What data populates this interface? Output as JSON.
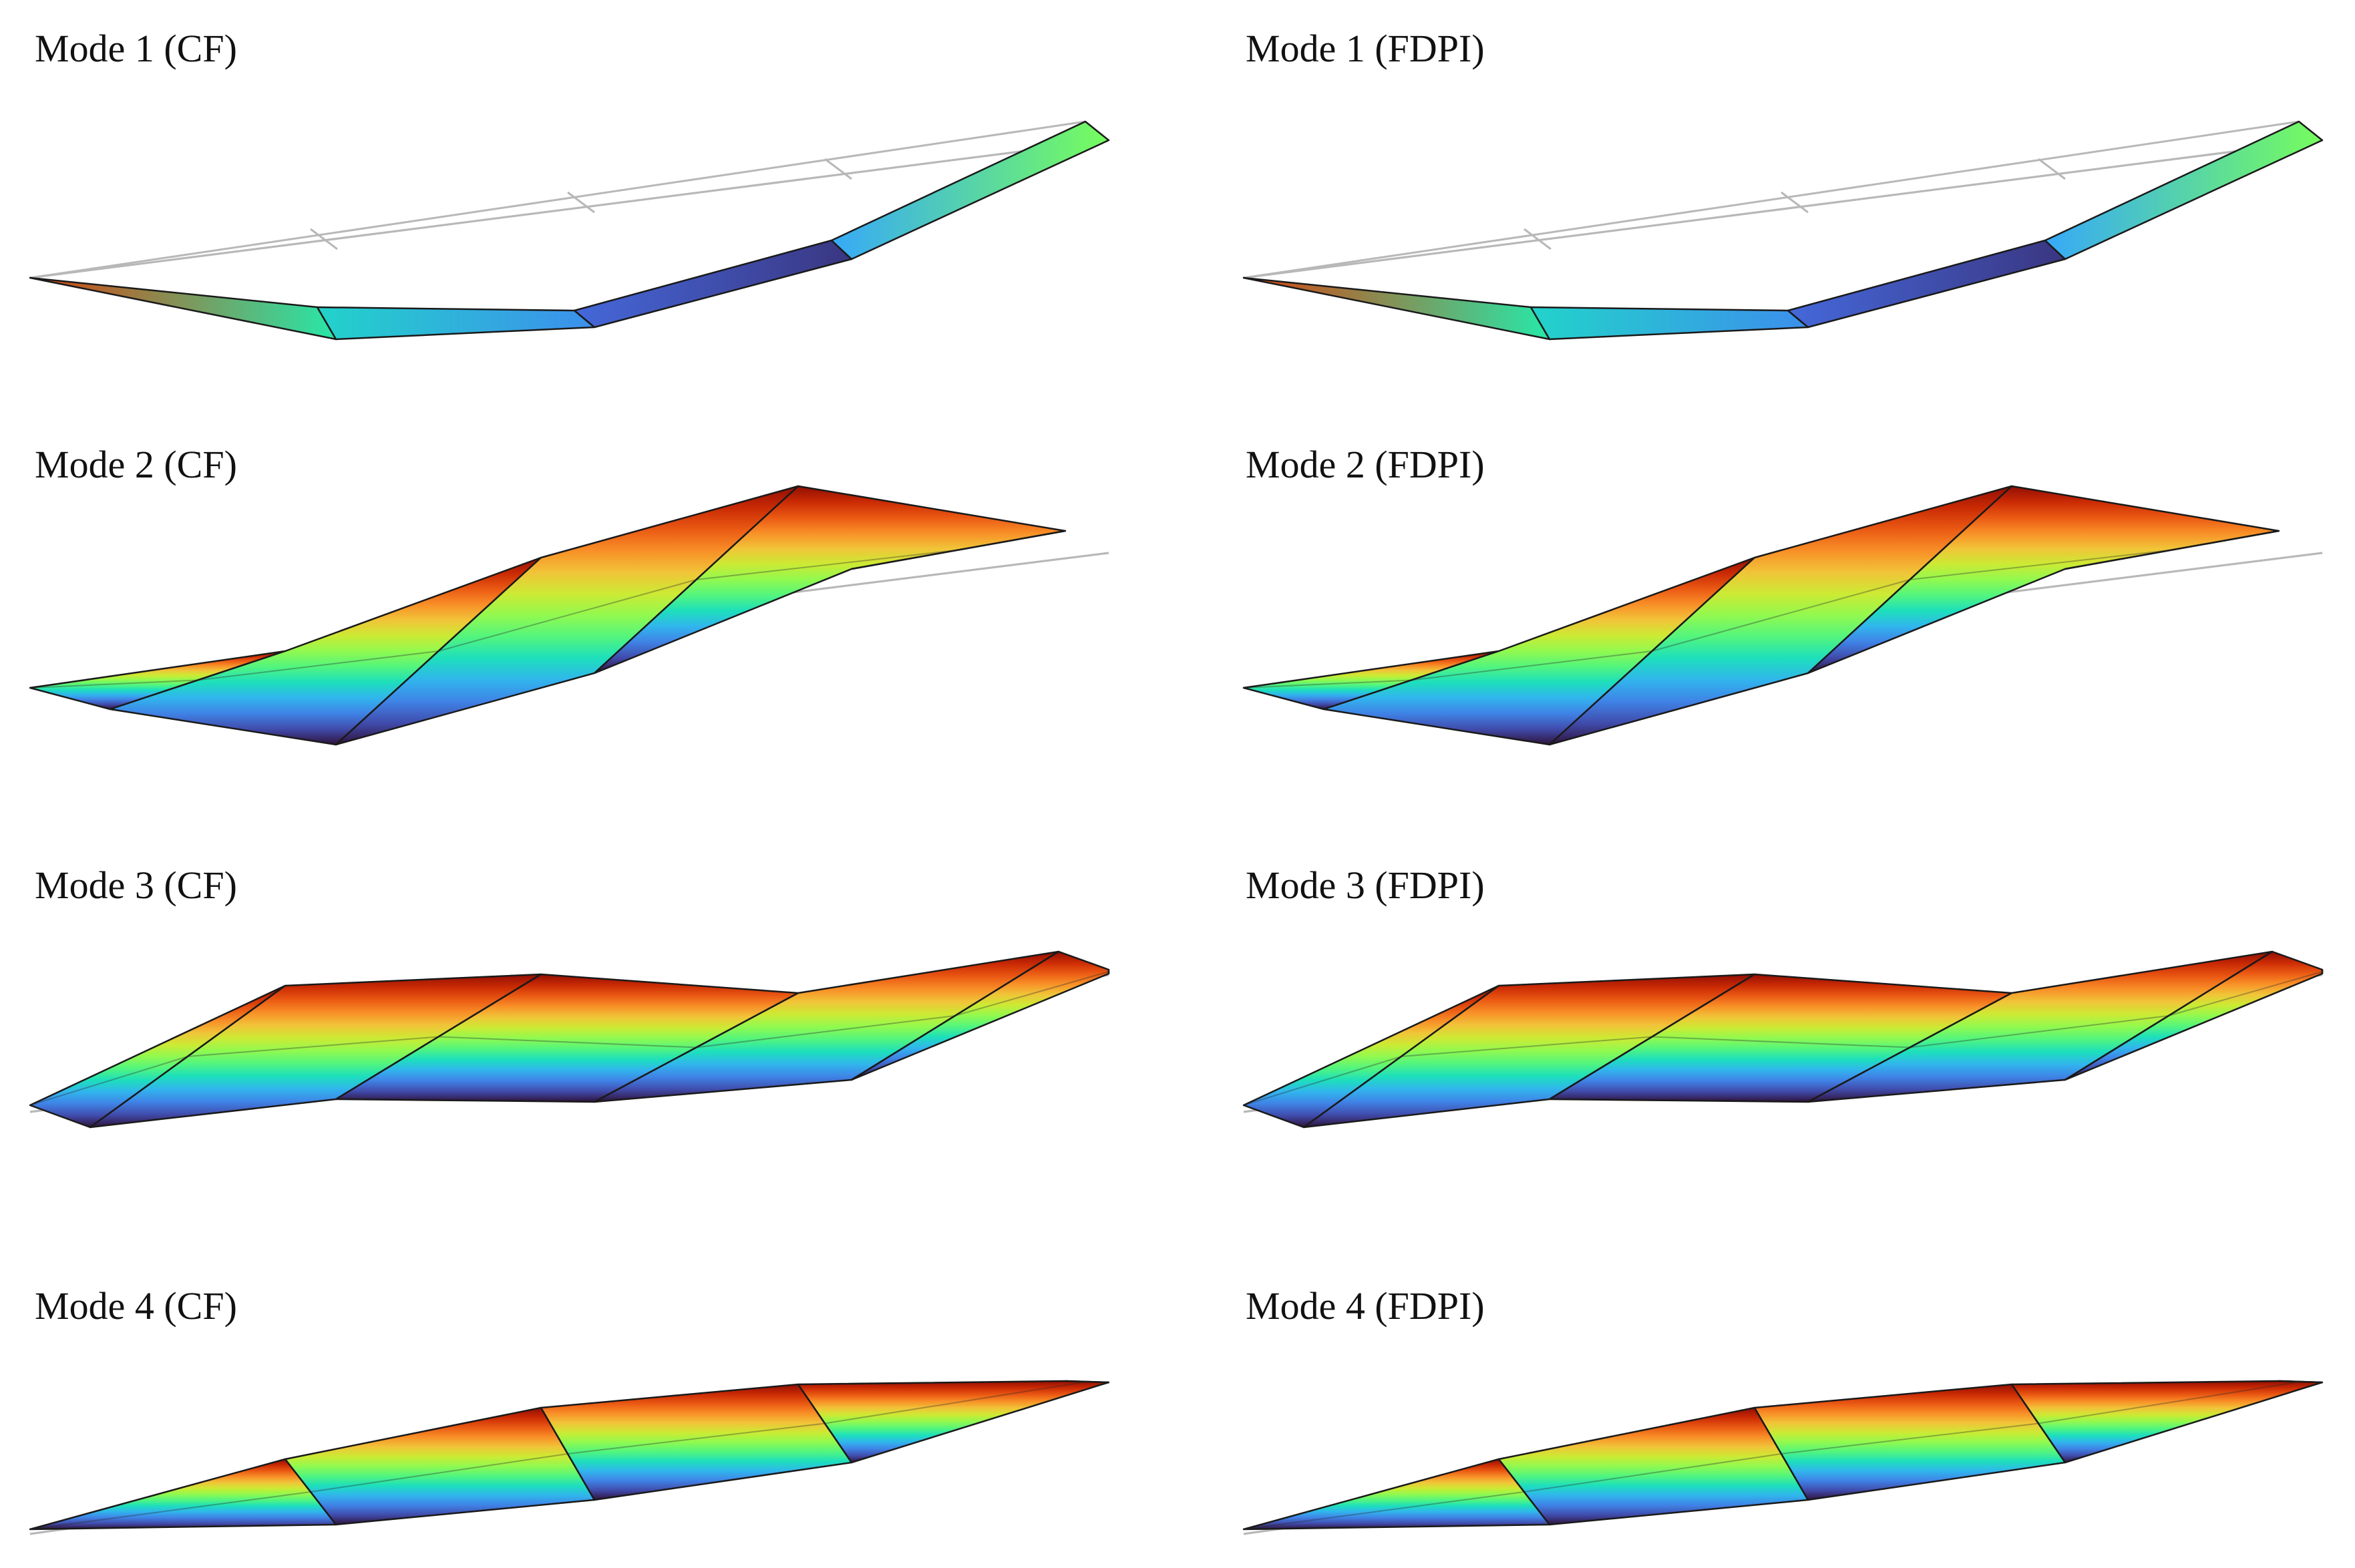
{
  "figure": {
    "colormap": [
      "#30123b",
      "#4662d7",
      "#36aaf9",
      "#1ae4b6",
      "#72fe5e",
      "#c7ef34",
      "#faba39",
      "#f66b19",
      "#ca2a04",
      "#7a0403"
    ],
    "undeformed_color": "#b8b8b8",
    "edge_color": "#1a1a1a",
    "panels": [
      {
        "title": "Mode 1 (CF)",
        "mode": 1,
        "method": "CF"
      },
      {
        "title": "Mode 1 (FDPI)",
        "mode": 1,
        "method": "FDPI"
      },
      {
        "title": "Mode 2 (CF)",
        "mode": 2,
        "method": "CF"
      },
      {
        "title": "Mode 2 (FDPI)",
        "mode": 2,
        "method": "FDPI"
      },
      {
        "title": "Mode 3 (CF)",
        "mode": 3,
        "method": "CF"
      },
      {
        "title": "Mode 3 (FDPI)",
        "mode": 3,
        "method": "FDPI"
      },
      {
        "title": "Mode 4 (CF)",
        "mode": 4,
        "method": "CF"
      },
      {
        "title": "Mode 4 (FDPI)",
        "mode": 4,
        "method": "FDPI"
      }
    ]
  }
}
